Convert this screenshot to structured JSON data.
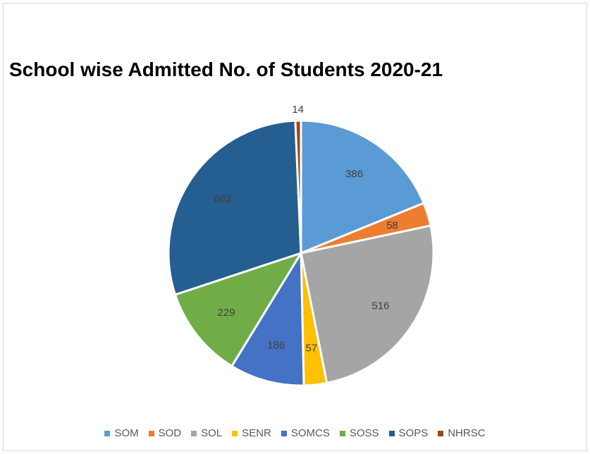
{
  "chart_data": {
    "type": "pie",
    "title": "School wise Admitted No. of Students 2020-21",
    "categories": [
      "SOM",
      "SOD",
      "SOL",
      "SENR",
      "SOMCS",
      "SOSS",
      "SOPS",
      "NHRSC"
    ],
    "values": [
      386,
      58,
      516,
      57,
      186,
      229,
      602,
      14
    ],
    "colors": [
      "#5b9bd5",
      "#ed7d31",
      "#a5a5a5",
      "#ffc000",
      "#4472c4",
      "#70ad47",
      "#255e91",
      "#9e480e"
    ],
    "legend": "bottom",
    "data_labels": true
  }
}
